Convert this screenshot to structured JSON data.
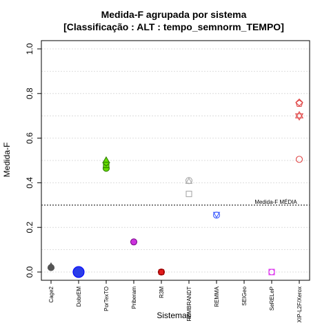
{
  "chart_data": {
    "type": "scatter",
    "title": "Medida-F agrupada por sistema",
    "subtitle": "[Classificação : ALT : tempo_semnorm_TEMPO]",
    "xlabel": "Sistemas",
    "ylabel": "Medida-F",
    "ylim": [
      0,
      1
    ],
    "yticks": [
      "0.0",
      "0.2",
      "0.4",
      "0.6",
      "0.8",
      "1.0"
    ],
    "grid": true,
    "categories": [
      "Cage2",
      "DobrEM",
      "PorTexTO",
      "Priberam",
      "R3M",
      "REMBRANDT",
      "REMMA",
      "SEIGeo",
      "SeRELeP",
      "XIP-L2F/Xerox"
    ],
    "reference_line": {
      "label": "Medida-F MÉDIA",
      "value": 0.3
    },
    "points": [
      {
        "category": "Cage2",
        "y": 0.02,
        "shape": "circle",
        "color": "#555555",
        "fill": "#555555",
        "size": 4.5
      },
      {
        "category": "Cage2",
        "y": 0.025,
        "shape": "triangle",
        "color": "#555555",
        "fill": "#555555",
        "size": 5
      },
      {
        "category": "DobrEM",
        "y": 0.0,
        "shape": "circle",
        "color": "#0000ff",
        "fill": "#2a3de8",
        "size": 8
      },
      {
        "category": "PorTexTO",
        "y": 0.465,
        "shape": "circle",
        "color": "#2f7d00",
        "fill": "#66dd00",
        "size": 4.5
      },
      {
        "category": "PorTexTO",
        "y": 0.48,
        "shape": "square",
        "color": "#2f7d00",
        "fill": "#66dd00",
        "size": 4
      },
      {
        "category": "PorTexTO",
        "y": 0.49,
        "shape": "diamond",
        "color": "#2f7d00",
        "fill": "#66dd00",
        "size": 5
      },
      {
        "category": "PorTexTO",
        "y": 0.5,
        "shape": "triangle",
        "color": "#2f7d00",
        "fill": "#66dd00",
        "size": 5
      },
      {
        "category": "Priberam",
        "y": 0.135,
        "shape": "circle",
        "color": "#7a0a8a",
        "fill": "#cc33dd",
        "size": 4.5
      },
      {
        "category": "R3M",
        "y": 0.0,
        "shape": "circle",
        "color": "#a00000",
        "fill": "#e21b1b",
        "size": 4.5
      },
      {
        "category": "R3M",
        "y": 0.0,
        "shape": "square",
        "color": "#a00000",
        "fill": "#e21b1b",
        "size": 3.5
      },
      {
        "category": "REMBRANDT",
        "y": 0.41,
        "shape": "circle",
        "color": "#aaaaaa",
        "fill": "none",
        "size": 4.5
      },
      {
        "category": "REMBRANDT",
        "y": 0.405,
        "shape": "triangle",
        "color": "#aaaaaa",
        "fill": "none",
        "size": 5
      },
      {
        "category": "REMBRANDT",
        "y": 0.35,
        "shape": "square",
        "color": "#aaaaaa",
        "fill": "none",
        "size": 4
      },
      {
        "category": "REMMA",
        "y": 0.255,
        "shape": "circle",
        "color": "#3b5bff",
        "fill": "none",
        "size": 4.5
      },
      {
        "category": "REMMA",
        "y": 0.26,
        "shape": "triangle-down",
        "color": "#3b5bff",
        "fill": "none",
        "size": 5
      },
      {
        "category": "SeRELeP",
        "y": 0.0,
        "shape": "square",
        "color": "#dd33ee",
        "fill": "none",
        "size": 4
      },
      {
        "category": "SeRELeP",
        "y": 0.0,
        "shape": "circle",
        "color": "#dd33ee",
        "fill": "none",
        "size": 4
      },
      {
        "category": "XIP-L2F/Xerox",
        "y": 0.505,
        "shape": "circle",
        "color": "#e04545",
        "fill": "none",
        "size": 4.5
      },
      {
        "category": "XIP-L2F/Xerox",
        "y": 0.7,
        "shape": "star6",
        "color": "#e04545",
        "fill": "none",
        "size": 6
      },
      {
        "category": "XIP-L2F/Xerox",
        "y": 0.755,
        "shape": "pentagon",
        "color": "#e04545",
        "fill": "none",
        "size": 5
      },
      {
        "category": "XIP-L2F/Xerox",
        "y": 0.76,
        "shape": "diamond",
        "color": "#e04545",
        "fill": "none",
        "size": 5
      }
    ]
  }
}
